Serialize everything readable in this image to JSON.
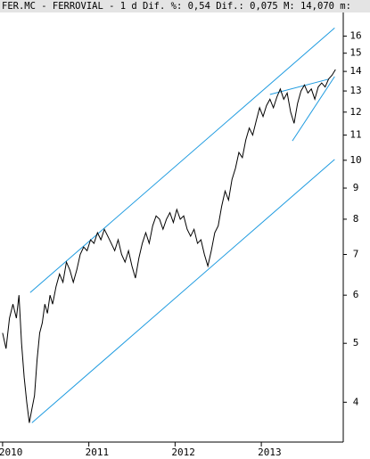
{
  "chart_data": {
    "type": "line",
    "title": "FER.MC - FERROVIAL - 1 d Dif. %: 0,54 Dif.: 0,075 M: 14,070 m: ",
    "log": true,
    "grid": false,
    "color": "#000000",
    "trend_color": "#1e9be0",
    "xlim": [
      2009.97,
      2013.95
    ],
    "xticks": [
      2010,
      2011,
      2012,
      2013
    ],
    "ylim": [
      3.44,
      17.5
    ],
    "yticks": [
      4,
      5,
      6,
      7,
      8,
      9,
      10,
      11,
      12,
      13,
      14,
      15,
      16
    ],
    "x": [
      2010.0,
      2010.04,
      2010.08,
      2010.12,
      2010.16,
      2010.19,
      2010.22,
      2010.25,
      2010.28,
      2010.31,
      2010.34,
      2010.37,
      2010.4,
      2010.43,
      2010.46,
      2010.49,
      2010.52,
      2010.55,
      2010.58,
      2010.62,
      2010.66,
      2010.7,
      2010.74,
      2010.78,
      2010.82,
      2010.86,
      2010.9,
      2010.94,
      2010.98,
      2011.02,
      2011.06,
      2011.1,
      2011.14,
      2011.18,
      2011.22,
      2011.26,
      2011.3,
      2011.34,
      2011.38,
      2011.42,
      2011.46,
      2011.5,
      2011.54,
      2011.58,
      2011.62,
      2011.66,
      2011.7,
      2011.74,
      2011.78,
      2011.82,
      2011.86,
      2011.9,
      2011.94,
      2011.98,
      2012.02,
      2012.06,
      2012.1,
      2012.14,
      2012.18,
      2012.22,
      2012.26,
      2012.3,
      2012.34,
      2012.38,
      2012.42,
      2012.46,
      2012.5,
      2012.54,
      2012.58,
      2012.62,
      2012.66,
      2012.7,
      2012.74,
      2012.78,
      2012.82,
      2012.86,
      2012.9,
      2012.94,
      2012.98,
      2013.02,
      2013.06,
      2013.1,
      2013.14,
      2013.18,
      2013.22,
      2013.26,
      2013.3,
      2013.34,
      2013.38,
      2013.42,
      2013.46,
      2013.5,
      2013.54,
      2013.58,
      2013.62,
      2013.66,
      2013.7,
      2013.74,
      2013.78,
      2013.82,
      2013.86
    ],
    "values": [
      5.2,
      4.9,
      5.5,
      5.8,
      5.5,
      6.0,
      5.0,
      4.4,
      4.0,
      3.7,
      3.9,
      4.1,
      4.7,
      5.2,
      5.4,
      5.8,
      5.6,
      6.0,
      5.8,
      6.2,
      6.5,
      6.3,
      6.8,
      6.6,
      6.3,
      6.6,
      7.0,
      7.2,
      7.1,
      7.4,
      7.3,
      7.6,
      7.4,
      7.7,
      7.5,
      7.3,
      7.1,
      7.4,
      7.0,
      6.8,
      7.1,
      6.7,
      6.4,
      6.9,
      7.3,
      7.6,
      7.3,
      7.8,
      8.1,
      8.0,
      7.7,
      8.0,
      8.2,
      7.9,
      8.3,
      8.0,
      8.1,
      7.7,
      7.5,
      7.7,
      7.3,
      7.4,
      7.0,
      6.7,
      7.1,
      7.6,
      7.8,
      8.4,
      8.9,
      8.6,
      9.3,
      9.7,
      10.3,
      10.1,
      10.8,
      11.3,
      11.0,
      11.6,
      12.2,
      11.8,
      12.3,
      12.6,
      12.2,
      12.7,
      13.1,
      12.6,
      12.9,
      12.0,
      11.5,
      12.4,
      13.0,
      13.3,
      12.9,
      13.1,
      12.6,
      13.2,
      13.4,
      13.2,
      13.6,
      13.8,
      14.1
    ],
    "trendlines": [
      {
        "x": [
          2010.32,
          2013.85
        ],
        "y": [
          6.06,
          16.5
        ]
      },
      {
        "x": [
          2010.34,
          2013.85
        ],
        "y": [
          3.7,
          10.03
        ]
      },
      {
        "x": [
          2013.1,
          2013.775
        ],
        "y": [
          12.83,
          13.59
        ]
      },
      {
        "x": [
          2013.36,
          2013.85
        ],
        "y": [
          10.76,
          13.73
        ]
      }
    ]
  }
}
